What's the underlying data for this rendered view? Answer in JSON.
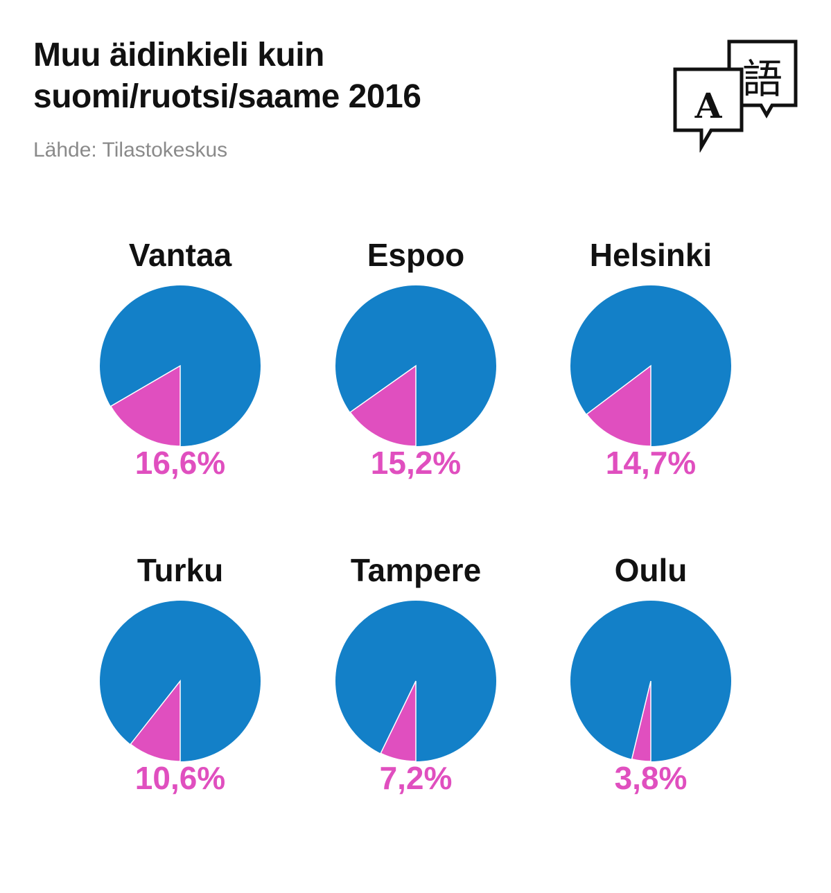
{
  "header": {
    "title_line1": "Muu äidinkieli kuin",
    "title_line2": "suomi/ruotsi/saame 2016",
    "source": "Lähde: Tilastokeskus",
    "icon": "language-translate-icon"
  },
  "colors": {
    "main": "#1380c8",
    "highlight": "#e04fbf",
    "text": "#111111",
    "source": "#8a8a8a"
  },
  "chart_data": {
    "type": "pie",
    "title": "Muu äidinkieli kuin suomi/ruotsi/saame 2016",
    "value_unit": "%",
    "pies": [
      {
        "label": "Vantaa",
        "value": 16.6,
        "display": "16,6%"
      },
      {
        "label": "Espoo",
        "value": 15.2,
        "display": "15,2%"
      },
      {
        "label": "Helsinki",
        "value": 14.7,
        "display": "14,7%"
      },
      {
        "label": "Turku",
        "value": 10.6,
        "display": "10,6%"
      },
      {
        "label": "Tampere",
        "value": 7.2,
        "display": "7,2%"
      },
      {
        "label": "Oulu",
        "value": 3.8,
        "display": "3,8%"
      }
    ]
  }
}
